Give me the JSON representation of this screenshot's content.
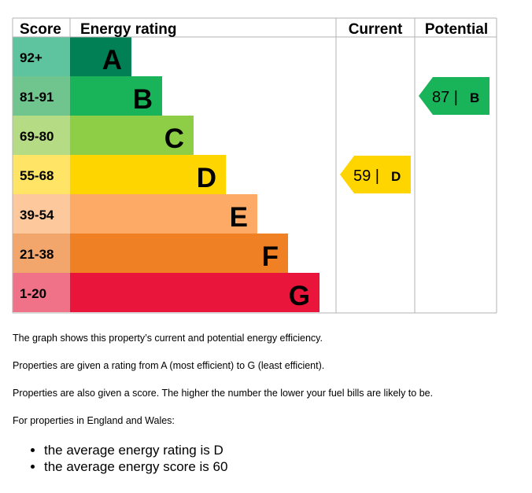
{
  "chart_data": {
    "type": "bar",
    "headers": {
      "score": "Score",
      "rating": "Energy rating",
      "current": "Current",
      "potential": "Potential"
    },
    "bands": [
      {
        "letter": "A",
        "range": "92+",
        "min": 92,
        "max": 100,
        "color": "#008054",
        "score_color": "#5ec4a0"
      },
      {
        "letter": "B",
        "range": "81-91",
        "min": 81,
        "max": 91,
        "color": "#19b459",
        "score_color": "#6fc58d"
      },
      {
        "letter": "C",
        "range": "69-80",
        "min": 69,
        "max": 80,
        "color": "#8dce46",
        "score_color": "#b5db84"
      },
      {
        "letter": "D",
        "range": "55-68",
        "min": 55,
        "max": 68,
        "color": "#ffd500",
        "score_color": "#ffe466"
      },
      {
        "letter": "E",
        "range": "39-54",
        "min": 39,
        "max": 54,
        "color": "#fcaa65",
        "score_color": "#fdc99c"
      },
      {
        "letter": "F",
        "range": "21-38",
        "min": 21,
        "max": 38,
        "color": "#ef8023",
        "score_color": "#f3a66c"
      },
      {
        "letter": "G",
        "range": "1-20",
        "min": 1,
        "max": 20,
        "color": "#e9153b",
        "score_color": "#f07288"
      }
    ],
    "current": {
      "score": 59,
      "rating": "D",
      "label": "59 |",
      "color": "#ffd500"
    },
    "potential": {
      "score": 87,
      "rating": "B",
      "label": "87 |",
      "color": "#19b459"
    }
  },
  "description": {
    "line1": "The graph shows this property’s current and potential energy efficiency.",
    "line2": "Properties are given a rating from A (most efficient) to G (least efficient).",
    "line3": "Properties are also given a score. The higher the number the lower your fuel bills are likely to be.",
    "line4": "For properties in England and Wales:",
    "bullets": [
      "the average energy rating is D",
      "the average energy score is 60"
    ]
  }
}
